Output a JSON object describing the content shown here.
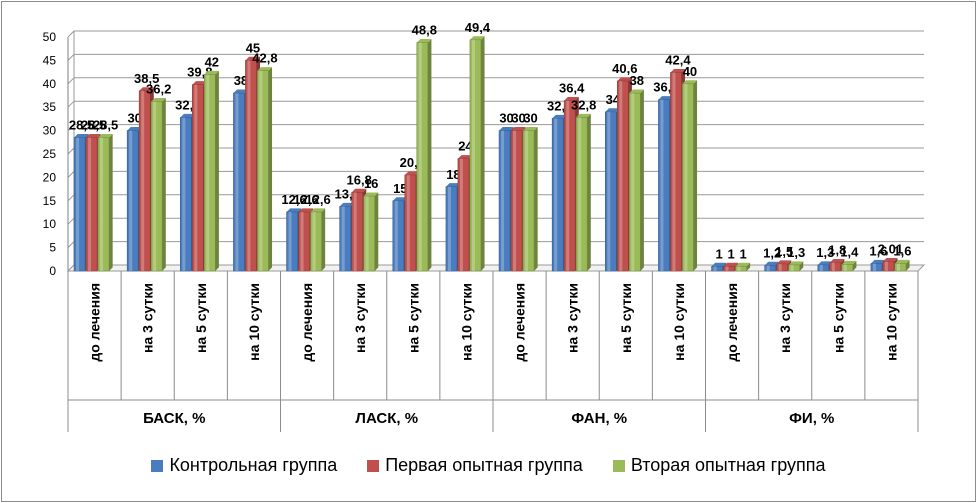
{
  "chart_data": {
    "type": "bar",
    "groups": [
      {
        "label": "БАСК, %",
        "categories": [
          "до лечения",
          "на 3 сутки",
          "на 5 сутки",
          "на 10 сутки"
        ]
      },
      {
        "label": "ЛАСК, %",
        "categories": [
          "до лечения",
          "на 3 сутки",
          "на 5 сутки",
          "на 10 сутки"
        ]
      },
      {
        "label": "ФАН, %",
        "categories": [
          "до лечения",
          "на 3 сутки",
          "на 5 сутки",
          "на 10 сутки"
        ]
      },
      {
        "label": "ФИ, %",
        "categories": [
          "до лечения",
          "на 3 сутки",
          "на 5 сутки",
          "на 10 сутки"
        ]
      }
    ],
    "series": [
      {
        "name": "Контрольная группа",
        "color": "#4a7dbf",
        "values": [
          28.5,
          30,
          32.8,
          38,
          12.6,
          13.8,
          15,
          18,
          30,
          32.6,
          34,
          36.6,
          1,
          1.2,
          1.3,
          1.6
        ],
        "labels": [
          "28,5",
          "30",
          "32,8",
          "38",
          "12,6",
          "13,8",
          "15",
          "18",
          "30",
          "32,6",
          "34",
          "36,6",
          "1",
          "1,2",
          "1,3",
          "1,6"
        ]
      },
      {
        "name": "Первая опытная группа",
        "color": "#c0504d",
        "values": [
          28.5,
          38.5,
          39.8,
          45,
          12.6,
          16.8,
          20.5,
          24,
          30,
          36.4,
          40.6,
          42.4,
          1,
          1.5,
          1.8,
          2.01
        ],
        "labels": [
          "28,5",
          "38,5",
          "39,8",
          "45",
          "12,6",
          "16,8",
          "20,5",
          "24",
          "30",
          "36,4",
          "40,6",
          "42,4",
          "1",
          "1,5",
          "1,8",
          "2,01"
        ]
      },
      {
        "name": "Вторая опытная группа",
        "color": "#9bbb59",
        "values": [
          28.5,
          36.2,
          42,
          42.8,
          12.6,
          16,
          48.8,
          49.4,
          30,
          32.8,
          38,
          40,
          1,
          1.3,
          1.4,
          1.6
        ],
        "labels": [
          "28,5",
          "36,2",
          "42",
          "42,8",
          "12,6",
          "16",
          "48,8",
          "49,4",
          "30",
          "32,8",
          "38",
          "40",
          "1",
          "1,3",
          "1,4",
          "1,6"
        ]
      }
    ],
    "ylim": [
      0,
      50
    ],
    "yticks": [
      "0",
      "5",
      "10",
      "15",
      "20",
      "25",
      "30",
      "35",
      "40",
      "45",
      "50"
    ],
    "grid": true,
    "legend_position": "bottom"
  }
}
